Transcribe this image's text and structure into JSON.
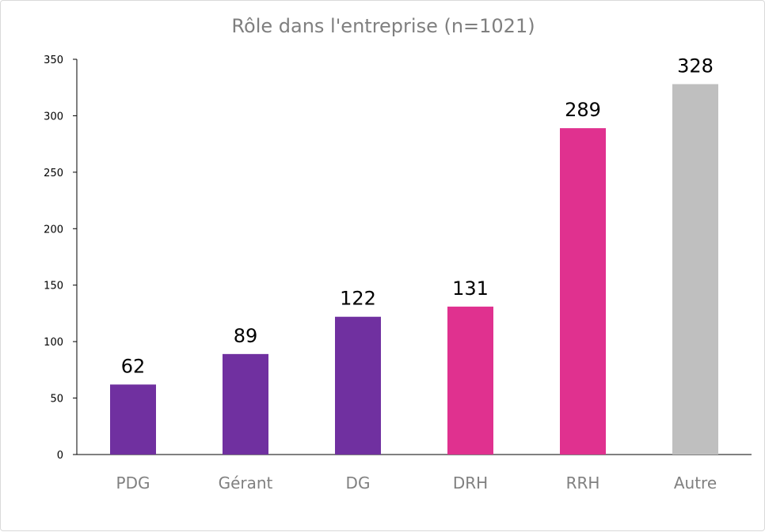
{
  "chart_data": {
    "type": "bar",
    "title": "Rôle dans l'entreprise (n=1021)",
    "xlabel": "",
    "ylabel": "",
    "categories": [
      "PDG",
      "Gérant",
      "DG",
      "DRH",
      "RRH",
      "Autre"
    ],
    "values": [
      62,
      89,
      122,
      131,
      289,
      328
    ],
    "data_labels": [
      "62",
      "89",
      "122",
      "131",
      "289",
      "328"
    ],
    "bar_colors": [
      "#7030A0",
      "#7030A0",
      "#7030A0",
      "#E0318F",
      "#E0318F",
      "#BFBFBF"
    ],
    "ylim": [
      0,
      350
    ],
    "yticks": [
      0,
      50,
      100,
      150,
      200,
      250,
      300,
      350
    ],
    "ytick_labels": [
      "0",
      "50",
      "100",
      "150",
      "200",
      "250",
      "300",
      "350"
    ],
    "grid": false,
    "legend": "none"
  }
}
